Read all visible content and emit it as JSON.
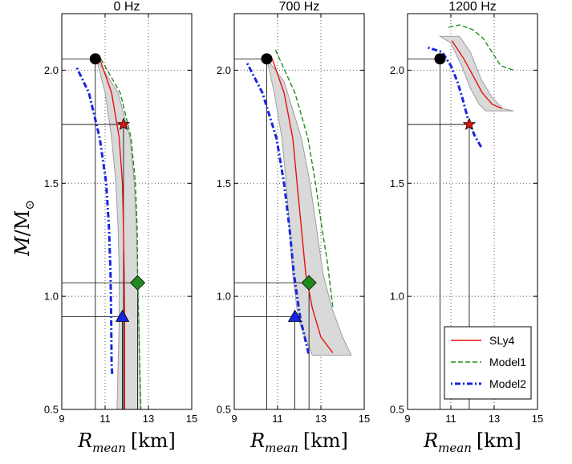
{
  "chart_data": {
    "type": "line",
    "y_label_main": "M",
    "y_label_sep": "/",
    "y_label_unit": "M",
    "y_label_sub": "⊙",
    "x_label_main": "R",
    "x_label_sub": "mean",
    "x_label_unit": "[km]",
    "xlim": [
      9,
      15
    ],
    "ylim": [
      0.5,
      2.25
    ],
    "x_ticks": [
      "9",
      "11",
      "13",
      "15"
    ],
    "y_ticks": [
      "0.5",
      "1.0",
      "1.5",
      "2.0"
    ],
    "legend": [
      {
        "name": "SLy4",
        "color": "#e8120c",
        "style": "solid"
      },
      {
        "name": "Model1",
        "color": "#1f8a1f",
        "style": "dashed"
      },
      {
        "name": "Model2",
        "color": "#1626e0",
        "style": "dashdot"
      }
    ],
    "colors": {
      "band": "#d9d9d9",
      "band_edge": "#9e9e9e",
      "sly4": "#e8120c",
      "model1": "#1f8a1f",
      "model2": "#1626e0"
    },
    "panels": [
      {
        "title": "0 Hz",
        "band_left": [
          [
            10.6,
            2.05
          ],
          [
            11.0,
            1.9
          ],
          [
            11.3,
            1.7
          ],
          [
            11.5,
            1.5
          ],
          [
            11.6,
            1.3
          ],
          [
            11.65,
            1.1
          ],
          [
            11.65,
            0.9
          ],
          [
            11.6,
            0.7
          ],
          [
            11.55,
            0.5
          ]
        ],
        "band_right": [
          [
            10.6,
            2.05
          ],
          [
            11.6,
            1.9
          ],
          [
            12.15,
            1.7
          ],
          [
            12.35,
            1.5
          ],
          [
            12.45,
            1.3
          ],
          [
            12.5,
            1.1
          ],
          [
            12.55,
            0.9
          ],
          [
            12.6,
            0.7
          ],
          [
            12.65,
            0.5
          ]
        ],
        "sly4": [
          [
            10.75,
            2.05
          ],
          [
            11.3,
            1.9
          ],
          [
            11.65,
            1.7
          ],
          [
            11.8,
            1.5
          ],
          [
            11.85,
            1.3
          ],
          [
            11.88,
            1.1
          ],
          [
            11.9,
            0.9
          ],
          [
            11.9,
            0.7
          ],
          [
            11.9,
            0.5
          ]
        ],
        "model1": [
          [
            10.8,
            2.05
          ],
          [
            11.7,
            1.9
          ],
          [
            12.2,
            1.7
          ],
          [
            12.4,
            1.5
          ],
          [
            12.48,
            1.3
          ],
          [
            12.5,
            1.1
          ],
          [
            12.55,
            0.9
          ],
          [
            12.6,
            0.7
          ],
          [
            12.65,
            0.5
          ]
        ],
        "model2": [
          [
            9.7,
            2.01
          ],
          [
            10.25,
            1.9
          ],
          [
            10.75,
            1.7
          ],
          [
            11.05,
            1.5
          ],
          [
            11.18,
            1.3
          ],
          [
            11.25,
            1.1
          ],
          [
            11.28,
            0.9
          ],
          [
            11.3,
            0.7
          ],
          [
            11.33,
            0.65
          ]
        ],
        "markers": [
          {
            "kind": "circle",
            "x": 10.55,
            "y": 2.05,
            "color": "#000000"
          },
          {
            "kind": "star",
            "x": 11.85,
            "y": 1.76,
            "color": "#e8120c"
          },
          {
            "kind": "diamond",
            "x": 12.5,
            "y": 1.06,
            "color": "#1f8a1f"
          },
          {
            "kind": "triangle",
            "x": 11.8,
            "y": 0.91,
            "color": "#1626e0"
          }
        ]
      },
      {
        "title": "700 Hz",
        "band_left": [
          [
            10.5,
            2.05
          ],
          [
            10.85,
            1.9
          ],
          [
            11.2,
            1.7
          ],
          [
            11.4,
            1.5
          ],
          [
            11.55,
            1.3
          ],
          [
            11.7,
            1.1
          ],
          [
            11.95,
            0.9
          ],
          [
            12.6,
            0.74
          ],
          [
            13.9,
            0.74
          ]
        ],
        "band_right": [
          [
            10.5,
            2.05
          ],
          [
            11.3,
            1.95
          ],
          [
            12.1,
            1.7
          ],
          [
            12.5,
            1.5
          ],
          [
            12.8,
            1.3
          ],
          [
            13.1,
            1.1
          ],
          [
            13.5,
            0.95
          ],
          [
            14.0,
            0.82
          ],
          [
            14.4,
            0.74
          ]
        ],
        "sly4": [
          [
            10.75,
            2.05
          ],
          [
            11.3,
            1.9
          ],
          [
            11.7,
            1.7
          ],
          [
            11.9,
            1.5
          ],
          [
            12.1,
            1.3
          ],
          [
            12.3,
            1.1
          ],
          [
            12.6,
            0.95
          ],
          [
            13.0,
            0.82
          ],
          [
            13.55,
            0.75
          ]
        ],
        "model1": [
          [
            10.9,
            2.09
          ],
          [
            11.8,
            1.9
          ],
          [
            12.4,
            1.7
          ],
          [
            12.75,
            1.5
          ],
          [
            13.05,
            1.3
          ],
          [
            13.3,
            1.15
          ],
          [
            13.55,
            0.95
          ]
        ],
        "model2": [
          [
            9.6,
            2.03
          ],
          [
            10.3,
            1.9
          ],
          [
            10.95,
            1.7
          ],
          [
            11.3,
            1.5
          ],
          [
            11.55,
            1.3
          ],
          [
            11.75,
            1.1
          ],
          [
            12.05,
            0.9
          ],
          [
            12.45,
            0.74
          ]
        ],
        "markers": [
          {
            "kind": "circle",
            "x": 10.5,
            "y": 2.05,
            "color": "#000000"
          },
          {
            "kind": "diamond",
            "x": 12.45,
            "y": 1.06,
            "color": "#1f8a1f"
          },
          {
            "kind": "triangle",
            "x": 11.8,
            "y": 0.91,
            "color": "#1626e0"
          }
        ]
      },
      {
        "title": "1200 Hz",
        "band_left": [
          [
            10.5,
            2.15
          ],
          [
            11.0,
            2.12
          ],
          [
            11.5,
            2.02
          ],
          [
            11.9,
            1.92
          ],
          [
            12.3,
            1.85
          ],
          [
            12.6,
            1.82
          ]
        ],
        "band_right": [
          [
            11.4,
            2.15
          ],
          [
            11.9,
            2.08
          ],
          [
            12.4,
            1.96
          ],
          [
            12.9,
            1.88
          ],
          [
            13.4,
            1.83
          ],
          [
            13.9,
            1.82
          ]
        ],
        "sly4": [
          [
            11.05,
            2.13
          ],
          [
            11.6,
            2.05
          ],
          [
            12.0,
            1.98
          ],
          [
            12.45,
            1.9
          ],
          [
            12.9,
            1.85
          ],
          [
            13.35,
            1.83
          ]
        ],
        "model1": [
          [
            10.9,
            2.19
          ],
          [
            11.4,
            2.2
          ],
          [
            12.0,
            2.18
          ],
          [
            12.5,
            2.14
          ],
          [
            12.9,
            2.08
          ],
          [
            13.3,
            2.02
          ],
          [
            13.9,
            2.0
          ]
        ],
        "model2": [
          [
            9.95,
            2.1
          ],
          [
            10.6,
            2.08
          ],
          [
            11.0,
            2.02
          ],
          [
            11.3,
            1.95
          ],
          [
            11.55,
            1.87
          ],
          [
            11.8,
            1.78
          ],
          [
            12.1,
            1.71
          ],
          [
            12.4,
            1.66
          ]
        ],
        "markers": [
          {
            "kind": "circle",
            "x": 10.5,
            "y": 2.05,
            "color": "#000000"
          },
          {
            "kind": "star",
            "x": 11.85,
            "y": 1.76,
            "color": "#e8120c"
          }
        ]
      }
    ]
  }
}
